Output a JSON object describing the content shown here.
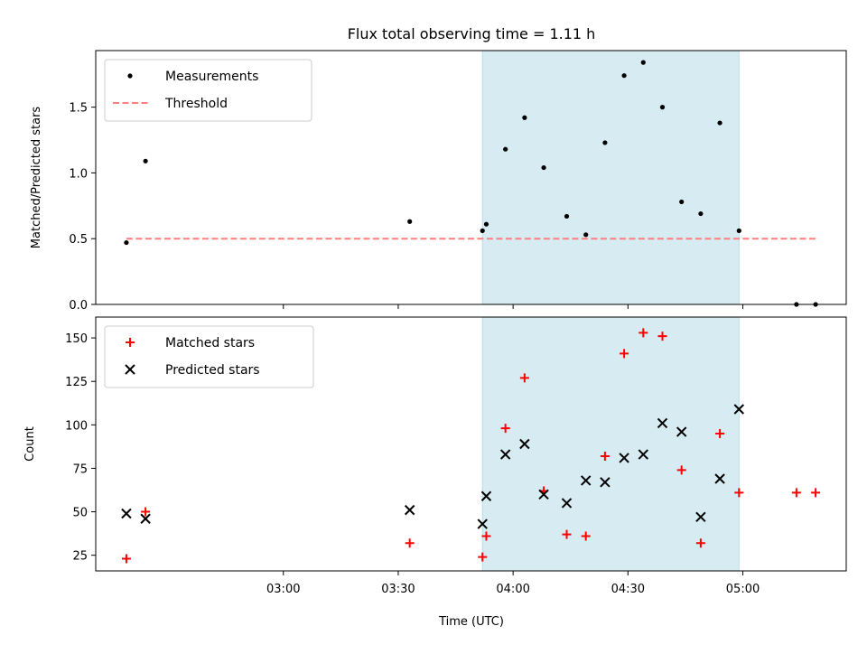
{
  "figure": {
    "title": "Flux total observing time = 1.11 h",
    "xlabel": "Time (UTC)"
  },
  "colors": {
    "shade": "#add8e6",
    "measurement": "#000000",
    "threshold": "#ff7f7f",
    "matched": "#ff0000",
    "predicted": "#000000"
  },
  "chart_data": [
    {
      "type": "scatter",
      "ylabel": "Matched/Predicted stars",
      "xlim": [
        "02:11",
        "05:27"
      ],
      "ylim": [
        0,
        1.93
      ],
      "x_ticks": [
        {
          "t": "03:00",
          "label": ""
        },
        {
          "t": "03:30",
          "label": ""
        },
        {
          "t": "04:00",
          "label": ""
        },
        {
          "t": "04:30",
          "label": ""
        },
        {
          "t": "05:00",
          "label": ""
        }
      ],
      "y_ticks": [
        {
          "v": 0.0,
          "label": "0.0"
        },
        {
          "v": 0.5,
          "label": "0.5"
        },
        {
          "v": 1.0,
          "label": "1.0"
        },
        {
          "v": 1.5,
          "label": "1.5"
        }
      ],
      "shaded_span": [
        "03:52",
        "04:59"
      ],
      "threshold": {
        "name": "Threshold",
        "value": 0.5,
        "x_range": [
          "02:19",
          "05:19"
        ]
      },
      "series": [
        {
          "name": "Measurements",
          "style": "dot",
          "points": [
            {
              "x": "02:19",
              "y": 0.47
            },
            {
              "x": "02:24",
              "y": 1.09
            },
            {
              "x": "03:33",
              "y": 0.63
            },
            {
              "x": "03:52",
              "y": 0.56
            },
            {
              "x": "03:53",
              "y": 0.61
            },
            {
              "x": "03:58",
              "y": 1.18
            },
            {
              "x": "04:03",
              "y": 1.42
            },
            {
              "x": "04:08",
              "y": 1.04
            },
            {
              "x": "04:14",
              "y": 0.67
            },
            {
              "x": "04:19",
              "y": 0.53
            },
            {
              "x": "04:24",
              "y": 1.23
            },
            {
              "x": "04:29",
              "y": 1.74
            },
            {
              "x": "04:34",
              "y": 1.84
            },
            {
              "x": "04:39",
              "y": 1.5
            },
            {
              "x": "04:44",
              "y": 0.78
            },
            {
              "x": "04:49",
              "y": 0.69
            },
            {
              "x": "04:54",
              "y": 1.38
            },
            {
              "x": "04:59",
              "y": 0.56
            },
            {
              "x": "05:14",
              "y": 0.0
            },
            {
              "x": "05:19",
              "y": 0.0
            }
          ]
        }
      ]
    },
    {
      "type": "scatter",
      "ylabel": "Count",
      "xlim": [
        "02:11",
        "05:27"
      ],
      "ylim": [
        16,
        162
      ],
      "x_ticks": [
        {
          "t": "03:00",
          "label": "03:00"
        },
        {
          "t": "03:30",
          "label": "03:30"
        },
        {
          "t": "04:00",
          "label": "04:00"
        },
        {
          "t": "04:30",
          "label": "04:30"
        },
        {
          "t": "05:00",
          "label": "05:00"
        }
      ],
      "y_ticks": [
        {
          "v": 25,
          "label": "25"
        },
        {
          "v": 50,
          "label": "50"
        },
        {
          "v": 75,
          "label": "75"
        },
        {
          "v": 100,
          "label": "100"
        },
        {
          "v": 125,
          "label": "125"
        },
        {
          "v": 150,
          "label": "150"
        }
      ],
      "shaded_span": [
        "03:52",
        "04:59"
      ],
      "series": [
        {
          "name": "Matched stars",
          "style": "plus",
          "points": [
            {
              "x": "02:19",
              "y": 23
            },
            {
              "x": "02:24",
              "y": 50
            },
            {
              "x": "03:33",
              "y": 32
            },
            {
              "x": "03:52",
              "y": 24
            },
            {
              "x": "03:53",
              "y": 36
            },
            {
              "x": "03:58",
              "y": 98
            },
            {
              "x": "04:03",
              "y": 127
            },
            {
              "x": "04:08",
              "y": 62
            },
            {
              "x": "04:14",
              "y": 37
            },
            {
              "x": "04:19",
              "y": 36
            },
            {
              "x": "04:24",
              "y": 82
            },
            {
              "x": "04:29",
              "y": 141
            },
            {
              "x": "04:34",
              "y": 153
            },
            {
              "x": "04:39",
              "y": 151
            },
            {
              "x": "04:44",
              "y": 74
            },
            {
              "x": "04:49",
              "y": 32
            },
            {
              "x": "04:54",
              "y": 95
            },
            {
              "x": "04:59",
              "y": 61
            },
            {
              "x": "05:14",
              "y": 61
            },
            {
              "x": "05:19",
              "y": 61
            }
          ]
        },
        {
          "name": "Predicted stars",
          "style": "cross",
          "points": [
            {
              "x": "02:19",
              "y": 49
            },
            {
              "x": "02:24",
              "y": 46
            },
            {
              "x": "03:33",
              "y": 51
            },
            {
              "x": "03:52",
              "y": 43
            },
            {
              "x": "03:53",
              "y": 59
            },
            {
              "x": "03:58",
              "y": 83
            },
            {
              "x": "04:03",
              "y": 89
            },
            {
              "x": "04:08",
              "y": 60
            },
            {
              "x": "04:14",
              "y": 55
            },
            {
              "x": "04:19",
              "y": 68
            },
            {
              "x": "04:24",
              "y": 67
            },
            {
              "x": "04:29",
              "y": 81
            },
            {
              "x": "04:34",
              "y": 83
            },
            {
              "x": "04:39",
              "y": 101
            },
            {
              "x": "04:44",
              "y": 96
            },
            {
              "x": "04:49",
              "y": 47
            },
            {
              "x": "04:54",
              "y": 69
            },
            {
              "x": "04:59",
              "y": 109
            }
          ]
        }
      ]
    }
  ]
}
